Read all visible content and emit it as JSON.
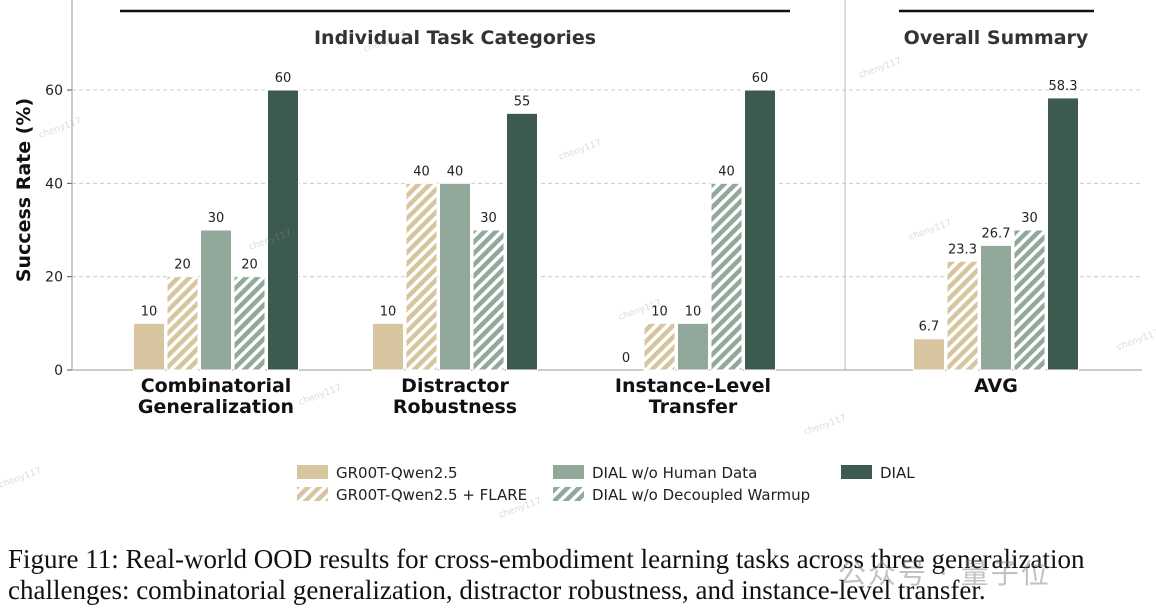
{
  "chart_data": {
    "type": "bar",
    "ylabel": "Success Rate (%)",
    "ylim": [
      0,
      75
    ],
    "yticks": [
      0,
      20,
      40,
      60
    ],
    "grid": true,
    "legend_position": "bottom-center",
    "sections": [
      {
        "title": "Individual Task Categories"
      },
      {
        "title": "Overall Summary"
      }
    ],
    "groups": [
      {
        "label_lines": [
          "Combinatorial",
          "Generalization"
        ],
        "values": [
          10,
          20,
          30,
          20,
          60
        ],
        "labels": [
          "10",
          "20",
          "30",
          "20",
          "60"
        ]
      },
      {
        "label_lines": [
          "Distractor",
          "Robustness"
        ],
        "values": [
          10,
          40,
          40,
          30,
          55
        ],
        "labels": [
          "10",
          "40",
          "40",
          "30",
          "55"
        ]
      },
      {
        "label_lines": [
          "Instance-Level",
          "Transfer"
        ],
        "values": [
          0,
          10,
          10,
          40,
          60
        ],
        "labels": [
          "0",
          "10",
          "10",
          "40",
          "60"
        ]
      },
      {
        "label_lines": [
          "AVG"
        ],
        "values": [
          6.7,
          23.3,
          26.7,
          30,
          58.3
        ],
        "labels": [
          "6.7",
          "23.3",
          "26.7",
          "30",
          "58.3"
        ]
      }
    ],
    "series": [
      {
        "name": "GR00T-Qwen2.5",
        "color": "#d6c59f",
        "hatch": false
      },
      {
        "name": "GR00T-Qwen2.5 + FLARE",
        "color": "#d6c59f",
        "hatch": true
      },
      {
        "name": "DIAL w/o Human Data",
        "color": "#91a89b",
        "hatch": false
      },
      {
        "name": "DIAL w/o Decoupled Warmup",
        "color": "#91a89b",
        "hatch": true
      },
      {
        "name": "DIAL",
        "color": "#3c5a4d",
        "hatch": false
      }
    ]
  },
  "caption": {
    "line1": "Figure 11:  Real-world OOD results for cross-embodiment learning tasks across three generalization",
    "line2": "challenges: combinatorial generalization, distractor robustness, and instance-level transfer."
  },
  "watermarks": {
    "caption_overlay": "公众号 · 量子位",
    "diagonal": "cheny117"
  }
}
